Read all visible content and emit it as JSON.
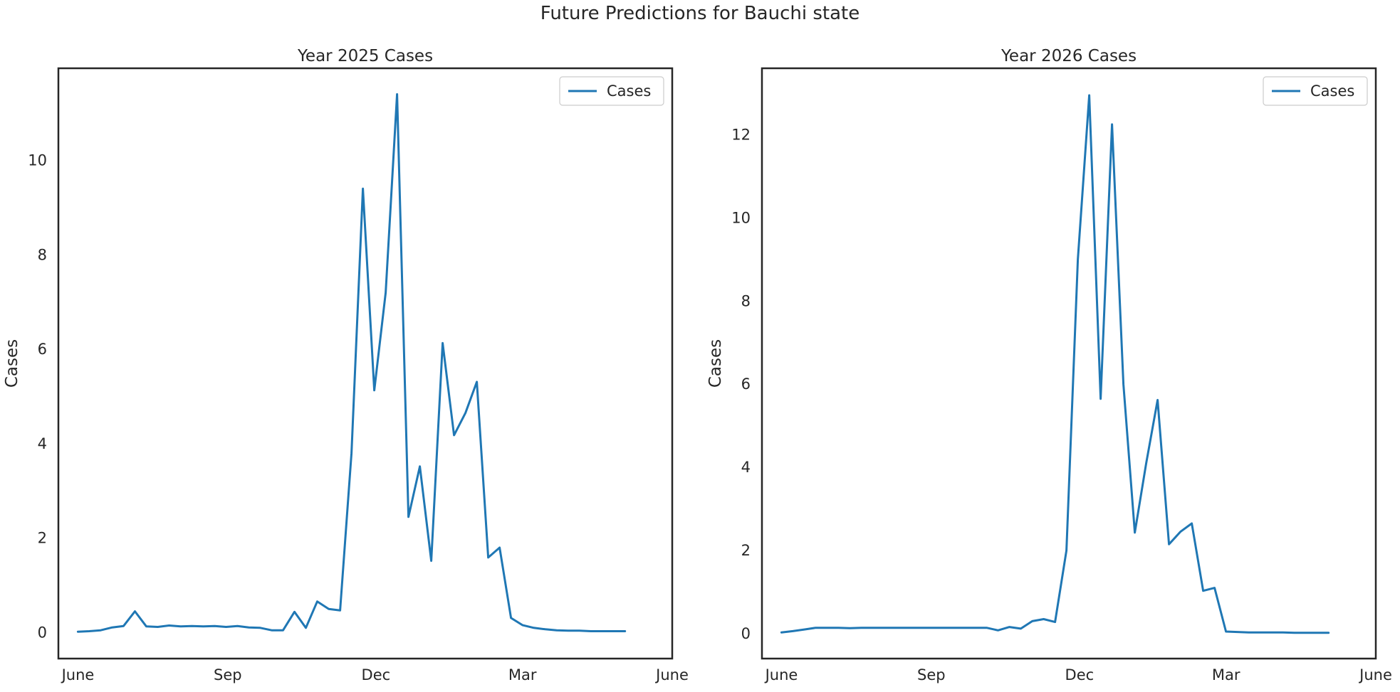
{
  "figure": {
    "suptitle": "Future Predictions for Bauchi state"
  },
  "chart_data": [
    {
      "type": "line",
      "title": "Year 2025 Cases",
      "xlabel": "",
      "ylabel": "Cases",
      "x_axis": "date",
      "xlim": [
        "2025-05-20",
        "2026-06-01"
      ],
      "ylim": [
        -0.55,
        11.95
      ],
      "xticks": [
        {
          "date": "2025-06-01",
          "label": "June"
        },
        {
          "date": "2025-09-01",
          "label": "Sep"
        },
        {
          "date": "2025-12-01",
          "label": "Dec"
        },
        {
          "date": "2026-03-01",
          "label": "Mar"
        },
        {
          "date": "2026-06-01",
          "label": "June"
        }
      ],
      "yticks": [
        0,
        2,
        4,
        6,
        8,
        10
      ],
      "grid": false,
      "legend": {
        "position": "top-right",
        "entries": [
          "Cases"
        ]
      },
      "color": "#1f77b4",
      "series": [
        {
          "name": "Cases",
          "x": [
            "2025-06-01",
            "2025-06-08",
            "2025-06-15",
            "2025-06-22",
            "2025-06-29",
            "2025-07-06",
            "2025-07-13",
            "2025-07-20",
            "2025-07-27",
            "2025-08-03",
            "2025-08-10",
            "2025-08-17",
            "2025-08-24",
            "2025-08-31",
            "2025-09-07",
            "2025-09-14",
            "2025-09-21",
            "2025-09-28",
            "2025-10-05",
            "2025-10-12",
            "2025-10-19",
            "2025-10-26",
            "2025-11-02",
            "2025-11-09",
            "2025-11-16",
            "2025-11-23",
            "2025-11-30",
            "2025-12-07",
            "2025-12-14",
            "2025-12-21",
            "2025-12-28",
            "2026-01-04",
            "2026-01-11",
            "2026-01-18",
            "2026-01-25",
            "2026-02-01",
            "2026-02-08",
            "2026-02-15",
            "2026-02-22",
            "2026-03-01",
            "2026-03-08",
            "2026-03-15",
            "2026-03-22",
            "2026-03-29",
            "2026-04-05",
            "2026-04-12",
            "2026-04-19",
            "2026-04-26",
            "2026-05-03"
          ],
          "y": [
            0.02,
            0.03,
            0.05,
            0.11,
            0.14,
            0.45,
            0.13,
            0.12,
            0.15,
            0.13,
            0.14,
            0.13,
            0.14,
            0.12,
            0.14,
            0.11,
            0.1,
            0.05,
            0.05,
            0.44,
            0.1,
            0.66,
            0.5,
            0.47,
            3.8,
            9.4,
            5.13,
            7.2,
            11.4,
            2.45,
            3.52,
            1.52,
            6.13,
            4.18,
            4.65,
            5.31,
            1.59,
            1.8,
            0.31,
            0.16,
            0.1,
            0.07,
            0.05,
            0.04,
            0.04,
            0.03,
            0.03,
            0.03,
            0.03
          ]
        }
      ]
    },
    {
      "type": "line",
      "title": "Year 2026 Cases",
      "xlabel": "",
      "ylabel": "Cases",
      "x_axis": "date",
      "xlim": [
        "2026-05-20",
        "2027-06-01"
      ],
      "ylim": [
        -0.6,
        13.6
      ],
      "xticks": [
        {
          "date": "2026-06-01",
          "label": "June"
        },
        {
          "date": "2026-09-01",
          "label": "Sep"
        },
        {
          "date": "2026-12-01",
          "label": "Dec"
        },
        {
          "date": "2027-03-01",
          "label": "Mar"
        },
        {
          "date": "2027-06-01",
          "label": "June"
        }
      ],
      "yticks": [
        0,
        2,
        4,
        6,
        8,
        10,
        12
      ],
      "grid": false,
      "legend": {
        "position": "top-right",
        "entries": [
          "Cases"
        ]
      },
      "color": "#1f77b4",
      "series": [
        {
          "name": "Cases",
          "x": [
            "2026-06-01",
            "2026-06-08",
            "2026-06-15",
            "2026-06-22",
            "2026-06-29",
            "2026-07-06",
            "2026-07-13",
            "2026-07-20",
            "2026-07-27",
            "2026-08-03",
            "2026-08-10",
            "2026-08-17",
            "2026-08-24",
            "2026-08-31",
            "2026-09-07",
            "2026-09-14",
            "2026-09-21",
            "2026-09-28",
            "2026-10-05",
            "2026-10-12",
            "2026-10-19",
            "2026-10-26",
            "2026-11-02",
            "2026-11-09",
            "2026-11-16",
            "2026-11-23",
            "2026-11-30",
            "2026-12-07",
            "2026-12-14",
            "2026-12-21",
            "2026-12-28",
            "2027-01-04",
            "2027-01-11",
            "2027-01-18",
            "2027-01-25",
            "2027-02-01",
            "2027-02-08",
            "2027-02-15",
            "2027-02-22",
            "2027-03-01",
            "2027-03-08",
            "2027-03-15",
            "2027-03-22",
            "2027-03-29",
            "2027-04-05",
            "2027-04-12",
            "2027-04-19",
            "2027-04-26",
            "2027-05-03"
          ],
          "y": [
            0.03,
            0.06,
            0.1,
            0.14,
            0.14,
            0.14,
            0.13,
            0.14,
            0.14,
            0.14,
            0.14,
            0.14,
            0.14,
            0.14,
            0.14,
            0.14,
            0.14,
            0.14,
            0.14,
            0.08,
            0.16,
            0.12,
            0.3,
            0.35,
            0.28,
            2.0,
            9.0,
            12.95,
            5.65,
            12.25,
            6.0,
            2.43,
            4.1,
            5.62,
            2.15,
            2.45,
            2.65,
            1.03,
            1.1,
            0.05,
            0.04,
            0.03,
            0.03,
            0.03,
            0.03,
            0.02,
            0.02,
            0.02,
            0.02
          ]
        }
      ]
    }
  ]
}
